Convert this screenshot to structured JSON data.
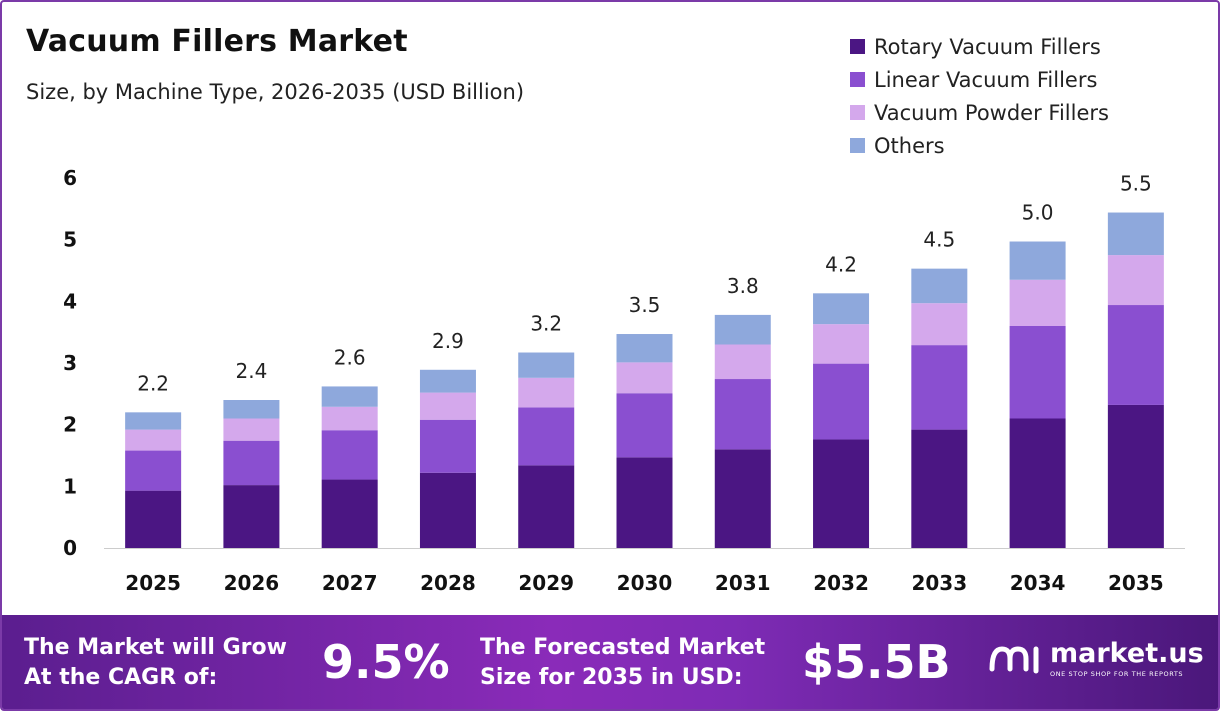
{
  "header": {
    "title": "Vacuum Fillers Market",
    "subtitle": "Size, by Machine Type, 2026-2035 (USD Billion)"
  },
  "colors": {
    "Rotary Vacuum Fillers": "#4b1683",
    "Linear Vacuum Fillers": "#8a4fd0",
    "Vacuum Powder Fillers": "#d4a8ec",
    "Others": "#8ea8dc",
    "axis": "#cccccc",
    "frame": "#7b3aa8"
  },
  "chart_data": {
    "type": "bar",
    "stacked": true,
    "categories": [
      "2025",
      "2026",
      "2027",
      "2028",
      "2029",
      "2030",
      "2031",
      "2032",
      "2033",
      "2034",
      "2035"
    ],
    "series": [
      {
        "name": "Rotary Vacuum Fillers",
        "values": [
          0.93,
          1.02,
          1.11,
          1.22,
          1.34,
          1.47,
          1.6,
          1.76,
          1.92,
          2.1,
          2.32
        ]
      },
      {
        "name": "Linear Vacuum Fillers",
        "values": [
          0.65,
          0.72,
          0.8,
          0.86,
          0.94,
          1.04,
          1.14,
          1.23,
          1.37,
          1.5,
          1.62
        ]
      },
      {
        "name": "Vacuum Powder Fillers",
        "values": [
          0.34,
          0.36,
          0.38,
          0.44,
          0.48,
          0.5,
          0.56,
          0.64,
          0.68,
          0.75,
          0.81
        ]
      },
      {
        "name": "Others",
        "values": [
          0.28,
          0.3,
          0.33,
          0.37,
          0.41,
          0.46,
          0.48,
          0.5,
          0.56,
          0.62,
          0.69
        ]
      }
    ],
    "totals": [
      "2.2",
      "2.4",
      "2.6",
      "2.9",
      "3.2",
      "3.5",
      "3.8",
      "4.2",
      "4.5",
      "5.0",
      "5.5"
    ],
    "yticks": [
      "0",
      "1",
      "2",
      "3",
      "4",
      "5",
      "6"
    ],
    "ylim": [
      0,
      6
    ],
    "grid": false,
    "legend_position": "top-right"
  },
  "banner": {
    "cagr_label_line1": "The Market will Grow",
    "cagr_label_line2": "At the CAGR of:",
    "cagr_value": "9.5%",
    "forecast_label_line1": "The Forecasted Market",
    "forecast_label_line2": "Size for 2035 in USD:",
    "forecast_value": "$5.5B",
    "brand_name": "market.us",
    "brand_tagline": "ONE STOP SHOP FOR THE REPORTS"
  }
}
